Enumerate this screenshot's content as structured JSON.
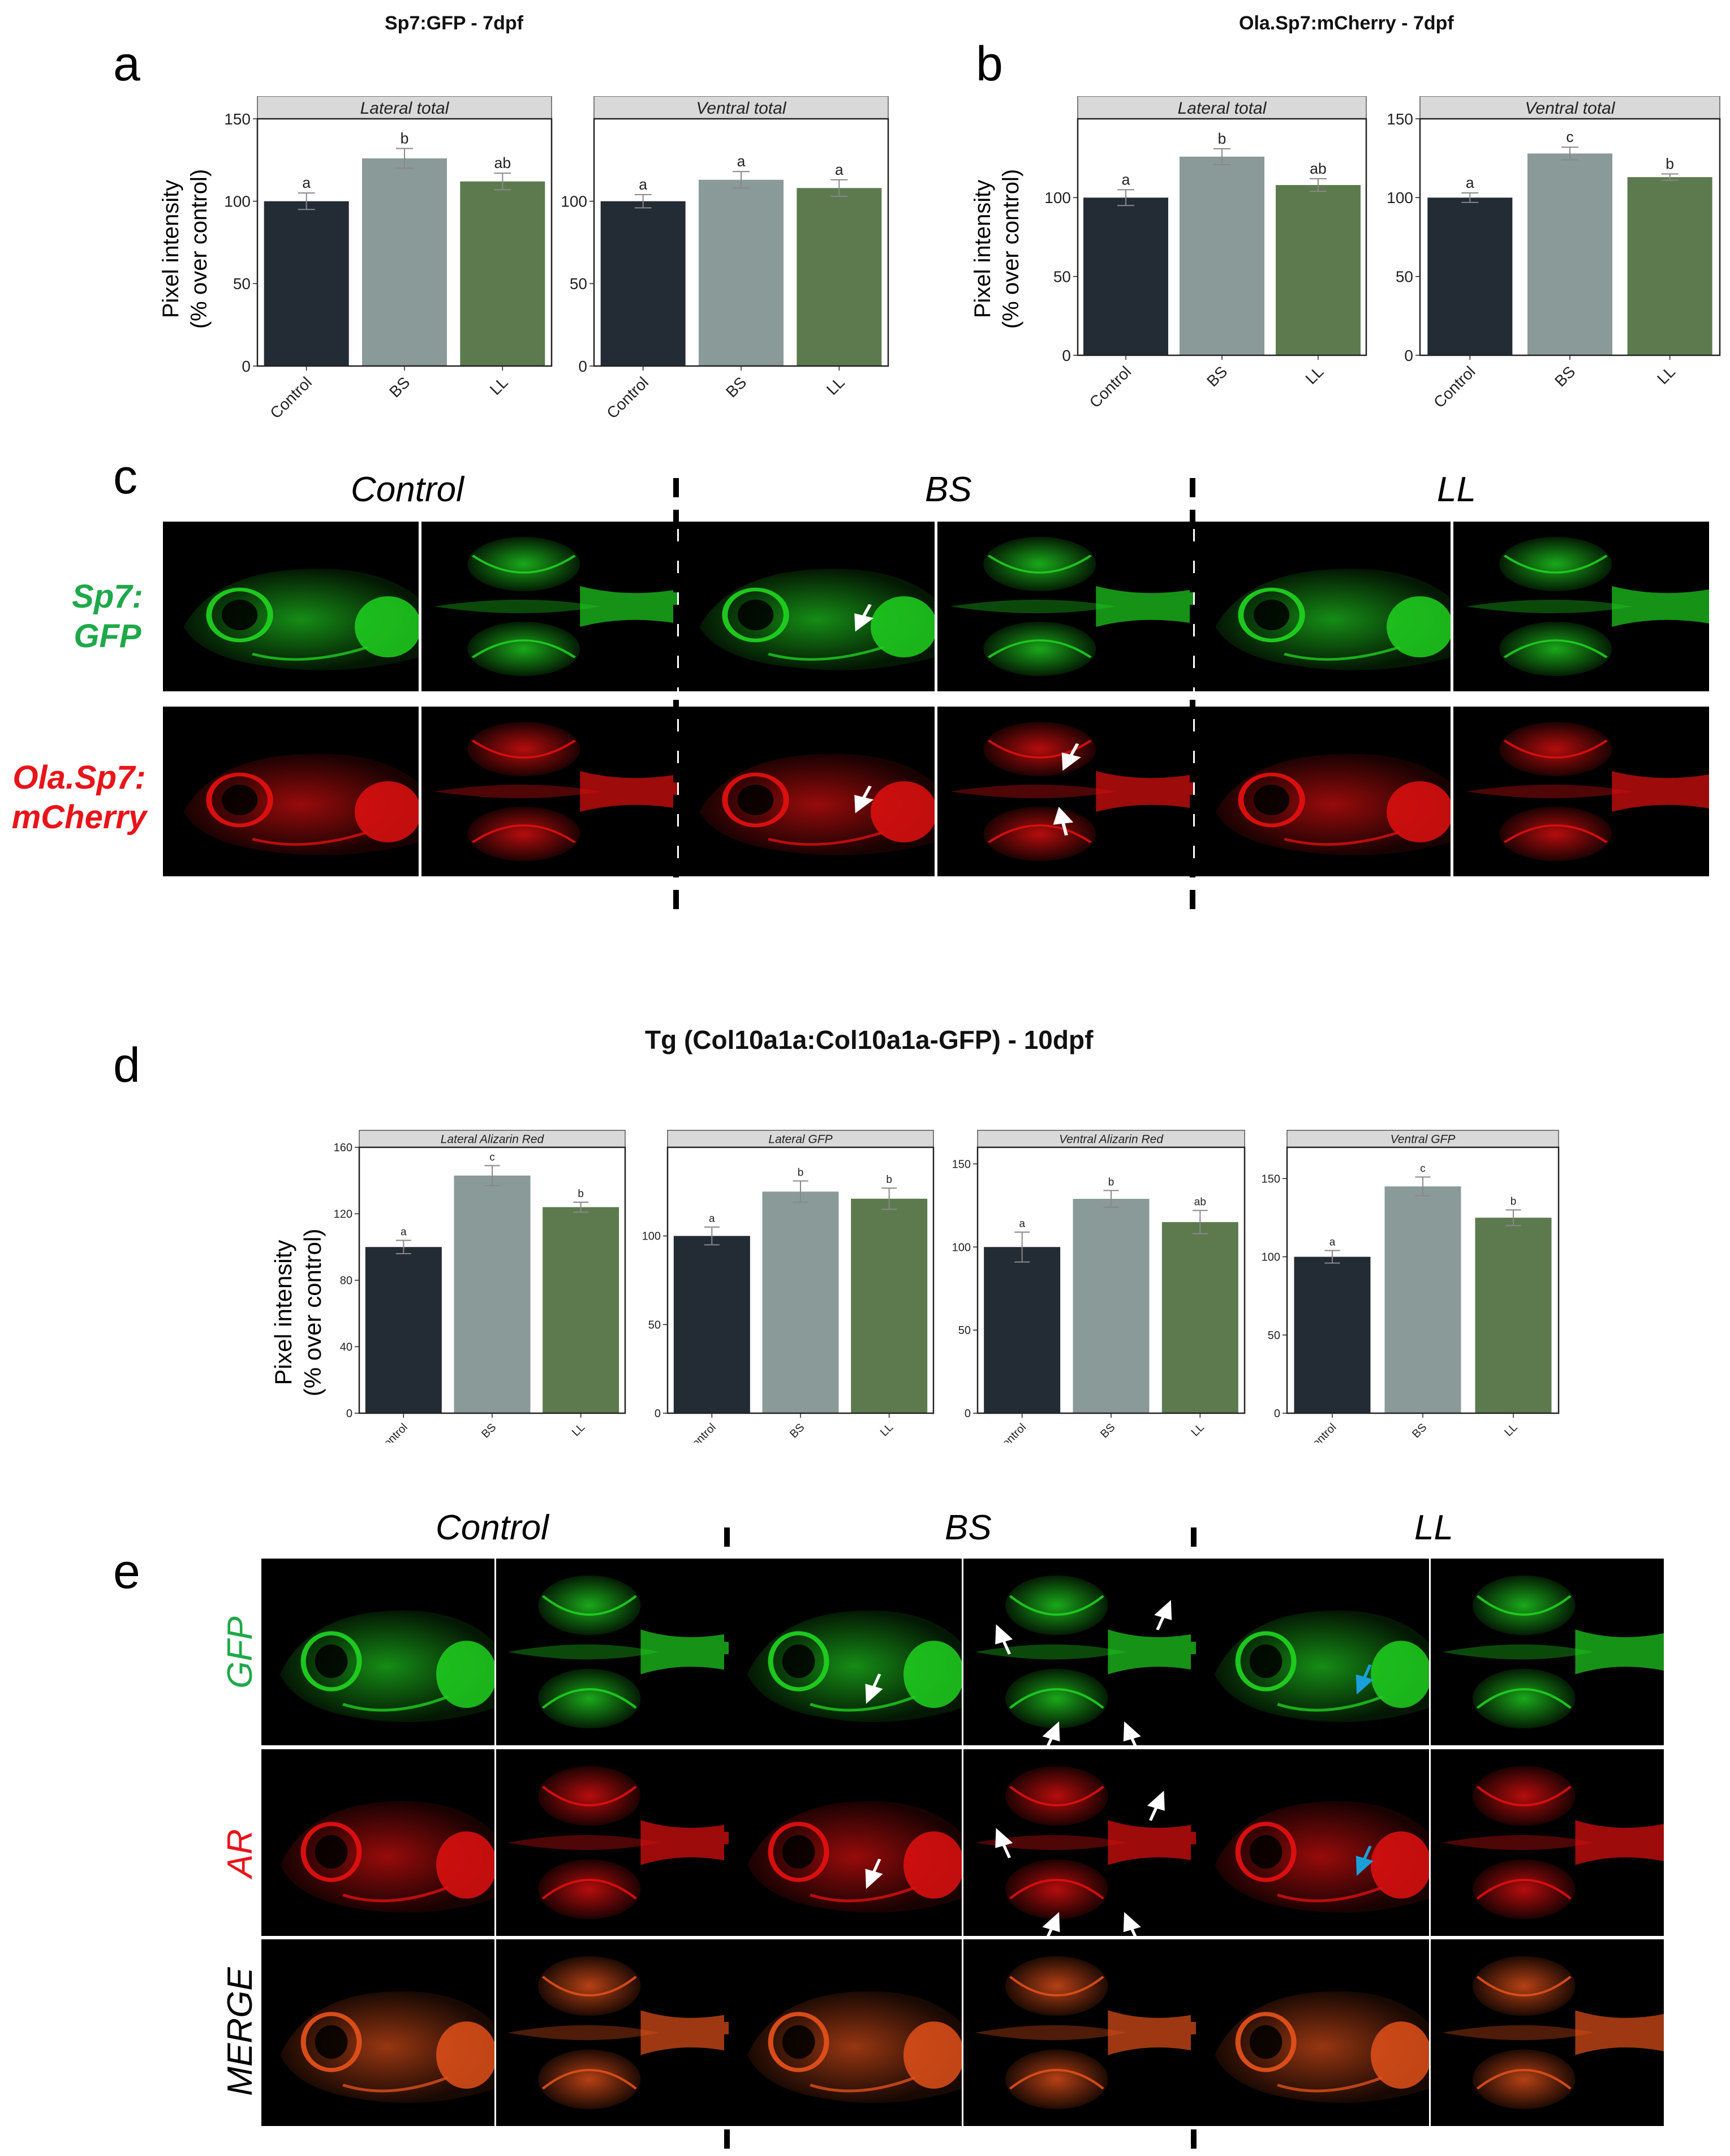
{
  "panels": {
    "a": {
      "letter": "a",
      "title": "Sp7:GFP - 7dpf",
      "ylabel_line1": "Pixel intensity",
      "ylabel_line2": "(% over control)"
    },
    "b": {
      "letter": "b",
      "title": "Ola.Sp7:mCherry - 7dpf",
      "ylabel_line1": "Pixel intensity",
      "ylabel_line2": "(% over control)"
    },
    "c": {
      "letter": "c",
      "groups": [
        "Control",
        "BS",
        "LL"
      ],
      "row1_line1": "Sp7:",
      "row1_line2": "GFP",
      "row2_line1": "Ola.Sp7:",
      "row2_line2": "mCherry"
    },
    "d": {
      "letter": "d",
      "title": "Tg (Col10a1a:Col10a1a-GFP) - 10dpf",
      "ylabel_line1": "Pixel intensity",
      "ylabel_line2": "(% over control)"
    },
    "e": {
      "letter": "e",
      "groups": [
        "Control",
        "BS",
        "LL"
      ],
      "row_labels": [
        "GFP",
        "AR",
        "MERGE"
      ]
    }
  },
  "colors": {
    "control": "#232b35",
    "bs": "#8a9a98",
    "ll": "#5d7a4f",
    "strip": "#d9d9d9",
    "green_label": "#1fa84a",
    "red_label": "#e8141a",
    "arrow_blue": "#1aa0d8"
  },
  "chart_data": [
    {
      "id": "a-lateral",
      "type": "bar",
      "strip": "Lateral total",
      "categories": [
        "Control",
        "BS",
        "LL"
      ],
      "values": [
        100,
        126,
        112
      ],
      "errors": [
        5,
        6,
        5
      ],
      "letters": [
        "a",
        "b",
        "ab"
      ],
      "yticks": [
        "0",
        "50",
        "100",
        "150"
      ],
      "ylim": [
        0,
        150
      ]
    },
    {
      "id": "a-ventral",
      "type": "bar",
      "strip": "Ventral total",
      "categories": [
        "Control",
        "BS",
        "LL"
      ],
      "values": [
        100,
        113,
        108
      ],
      "errors": [
        4,
        5,
        5
      ],
      "letters": [
        "a",
        "a",
        "a"
      ],
      "yticks": [
        "0",
        "50",
        "100"
      ],
      "ylim": [
        0,
        150
      ]
    },
    {
      "id": "b-lateral",
      "type": "bar",
      "strip": "Lateral total",
      "categories": [
        "Control",
        "BS",
        "LL"
      ],
      "values": [
        100,
        126,
        108
      ],
      "errors": [
        5,
        5,
        4
      ],
      "letters": [
        "a",
        "b",
        "ab"
      ],
      "yticks": [
        "0",
        "50",
        "100"
      ],
      "ylim": [
        0,
        150
      ]
    },
    {
      "id": "b-ventral",
      "type": "bar",
      "strip": "Ventral total",
      "categories": [
        "Control",
        "BS",
        "LL"
      ],
      "values": [
        100,
        128,
        113
      ],
      "errors": [
        3,
        4,
        2
      ],
      "letters": [
        "a",
        "c",
        "b"
      ],
      "yticks": [
        "0",
        "50",
        "100",
        "150"
      ],
      "ylim": [
        0,
        150
      ]
    },
    {
      "id": "d-lateral-ar",
      "type": "bar",
      "strip": "Lateral Alizarin Red",
      "categories": [
        "Control",
        "BS",
        "LL"
      ],
      "values": [
        100,
        143,
        124
      ],
      "errors": [
        4,
        6,
        3
      ],
      "letters": [
        "a",
        "c",
        "b"
      ],
      "yticks": [
        "0",
        "40",
        "80",
        "120",
        "160"
      ],
      "ylim": [
        0,
        160
      ]
    },
    {
      "id": "d-lateral-gfp",
      "type": "bar",
      "strip": "Lateral GFP",
      "categories": [
        "Control",
        "BS",
        "LL"
      ],
      "values": [
        100,
        125,
        121
      ],
      "errors": [
        5,
        6,
        6
      ],
      "letters": [
        "a",
        "b",
        "b"
      ],
      "yticks": [
        "0",
        "50",
        "100"
      ],
      "ylim": [
        0,
        150
      ]
    },
    {
      "id": "d-ventral-ar",
      "type": "bar",
      "strip": "Ventral Alizarin Red",
      "categories": [
        "Control",
        "BS",
        "LL"
      ],
      "values": [
        100,
        129,
        115
      ],
      "errors": [
        9,
        5,
        7
      ],
      "letters": [
        "a",
        "b",
        "ab"
      ],
      "yticks": [
        "0",
        "50",
        "100",
        "150"
      ],
      "ylim": [
        0,
        160
      ]
    },
    {
      "id": "d-ventral-gfp",
      "type": "bar",
      "strip": "Ventral GFP",
      "categories": [
        "Control",
        "BS",
        "LL"
      ],
      "values": [
        100,
        145,
        125
      ],
      "errors": [
        4,
        6,
        5
      ],
      "letters": [
        "a",
        "c",
        "b"
      ],
      "yticks": [
        "0",
        "50",
        "100",
        "150"
      ],
      "ylim": [
        0,
        170
      ]
    }
  ]
}
